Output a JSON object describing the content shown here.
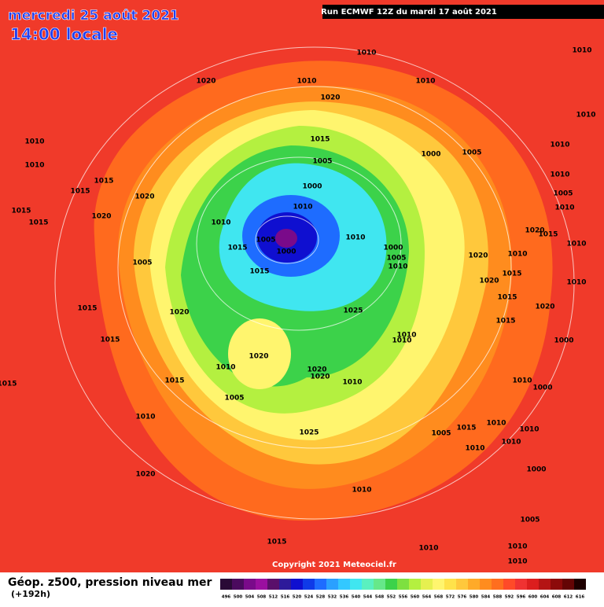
{
  "header": {
    "date": "mercredi 25 août 2021",
    "time": "14:00 locale",
    "run": "Run ECMWF 12Z du mardi 17 août 2021"
  },
  "copyright": "Copyright 2021 Meteociel.fr",
  "footer": {
    "title": "Géop. z500, pression niveau mer",
    "lead": "(+192h)"
  },
  "scale": {
    "values": [
      496,
      500,
      504,
      508,
      512,
      516,
      520,
      524,
      528,
      532,
      536,
      540,
      544,
      548,
      552,
      556,
      560,
      564,
      568,
      572,
      576,
      580,
      584,
      588,
      592,
      596,
      600,
      604,
      608,
      612,
      616
    ],
    "colors": [
      "#2a0a36",
      "#4b0a5e",
      "#7a0a8a",
      "#9b0fa0",
      "#5a0f6a",
      "#2d1a9a",
      "#0f0fd0",
      "#0f3ae8",
      "#1e6cff",
      "#2aa0ff",
      "#33c8ff",
      "#40e6f0",
      "#5af0c0",
      "#66e88a",
      "#3cd24a",
      "#7ee040",
      "#b4f040",
      "#e6f050",
      "#fff56e",
      "#ffe24a",
      "#ffc83c",
      "#ffaa28",
      "#ff8c1e",
      "#ff6e1e",
      "#ff4a28",
      "#f03232",
      "#dc1e1e",
      "#b41414",
      "#8c0a0a",
      "#640505",
      "#1e0000"
    ]
  },
  "isobar_labels": [
    "1010",
    "1010",
    "1020",
    "1010",
    "1010",
    "1020",
    "1010",
    "1010",
    "1015",
    "1010",
    "1000",
    "1005",
    "1005",
    "1010",
    "1010",
    "1015",
    "1000",
    "1015",
    "1020",
    "1005",
    "1010",
    "1015",
    "1020",
    "1010",
    "1015",
    "1010",
    "1020",
    "1015",
    "1005",
    "1010",
    "1010",
    "1000",
    "1015",
    "1000",
    "1005",
    "1020",
    "1010",
    "1005",
    "1010",
    "1015",
    "1015",
    "1020",
    "1010",
    "1015",
    "1020",
    "1025",
    "1015",
    "1015",
    "1020",
    "1010",
    "1010",
    "1015",
    "1000",
    "1020",
    "1010",
    "1020",
    "1020",
    "1010",
    "1015",
    "1015",
    "1010",
    "1000",
    "1005",
    "1010",
    "1025",
    "1015",
    "1010",
    "1010",
    "1005",
    "1010",
    "1010",
    "1000",
    "1020",
    "1010",
    "1005",
    "1015",
    "1010",
    "1010",
    "1010"
  ]
}
